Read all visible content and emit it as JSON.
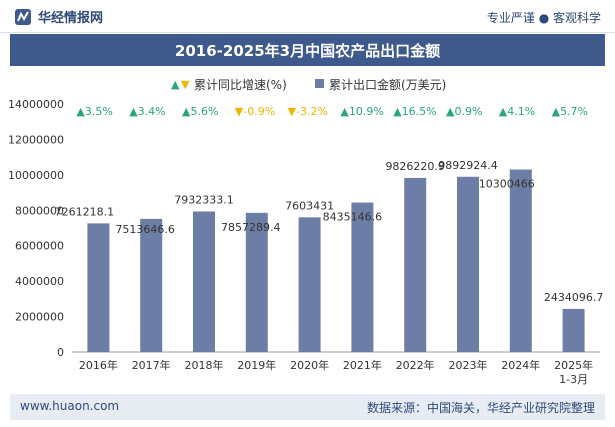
{
  "header": {
    "brand": "华经情报网",
    "tagline": "专业严谨 ● 客观科学"
  },
  "chart_data": {
    "type": "bar",
    "title": "2016-2025年3月中国农产品出口金额",
    "categories": [
      "2016年",
      "2017年",
      "2018年",
      "2019年",
      "2020年",
      "2021年",
      "2022年",
      "2023年",
      "2024年",
      "2025年\n1-3月"
    ],
    "series": [
      {
        "name": "累计出口金额(万美元)",
        "values": [
          7261218.1,
          7513646.6,
          7932333.1,
          7857289.4,
          7603431,
          8435146.6,
          9826220.9,
          9892924.4,
          10300466,
          2434096.7
        ],
        "labels": [
          "7261218.1",
          "7513646.6",
          "7932333.1",
          "7857289.4",
          "7603431",
          "8435146.6",
          "9826220.9",
          "9892924.4",
          "10300466",
          "2434096.7"
        ],
        "color": "#6c7ea6"
      },
      {
        "name": "累计同比增速(%)",
        "values": [
          3.5,
          3.4,
          5.6,
          -0.9,
          -3.2,
          10.9,
          16.5,
          0.9,
          4.1,
          5.7
        ],
        "labels": [
          "3.5%",
          "3.4%",
          "5.6%",
          "-0.9%",
          "-3.2%",
          "10.9%",
          "16.5%",
          "0.9%",
          "4.1%",
          "5.7%"
        ],
        "up_color": "#2aa57c",
        "down_color": "#f0b400"
      }
    ],
    "yticks": [
      "0",
      "2000000",
      "4000000",
      "6000000",
      "8000000",
      "10000000",
      "12000000",
      "14000000"
    ],
    "ylim": [
      0,
      14000000
    ],
    "legend_position": "top"
  },
  "footer": {
    "website": "www.huaon.com",
    "source": "数据来源：中国海关，华经产业研究院整理"
  }
}
